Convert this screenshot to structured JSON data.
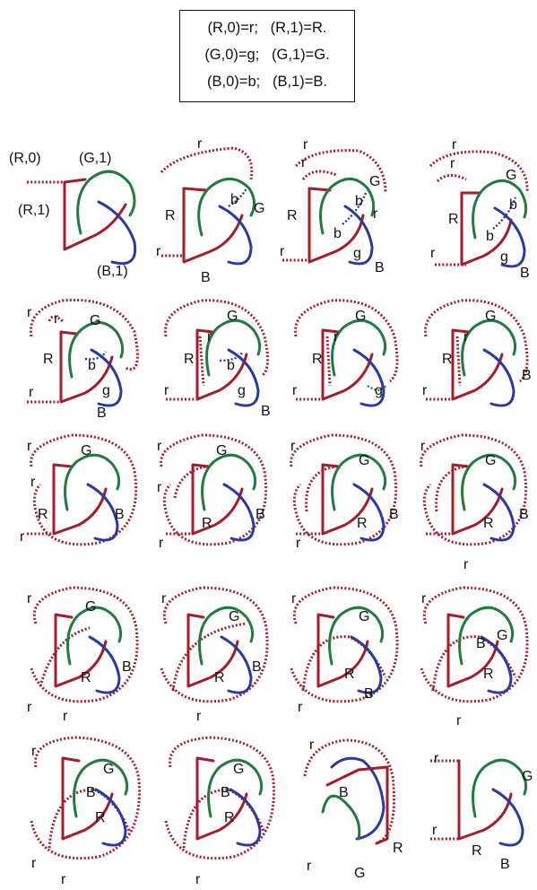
{
  "legend": {
    "lines": [
      "(R,0)=r;   (R,1)=R.",
      "(G,0)=g;   (G,1)=G.",
      "(B,0)=b;   (B,1)=B."
    ]
  },
  "first_panel_labels": {
    "r0": "(R,0)",
    "r1": "(R,1)",
    "g1": "(G,1)",
    "b1": "(B,1)"
  },
  "letters": {
    "r": "r",
    "R": "R",
    "g": "g",
    "G": "G",
    "b": "b",
    "B": "B"
  },
  "colors": {
    "red": "#a51c2a",
    "green": "#237a3f",
    "blue": "#2a3aa0"
  }
}
